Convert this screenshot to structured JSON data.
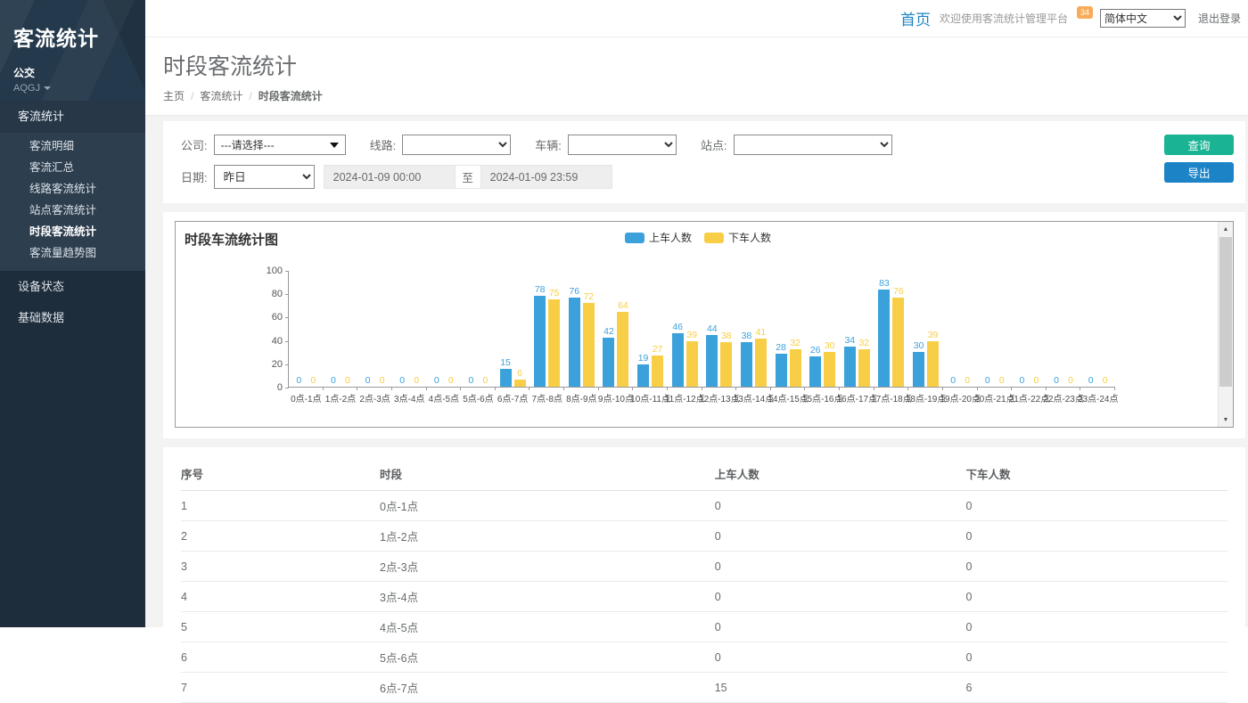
{
  "sidebar": {
    "app_title": "客流统计",
    "org": "公交",
    "user": "AQGJ",
    "menu": {
      "parent": "客流统计",
      "sub": [
        "客流明细",
        "客流汇总",
        "线路客流统计",
        "站点客流统计",
        "时段客流统计",
        "客流量趋势图"
      ],
      "active_sub_index": 4,
      "others": [
        "设备状态",
        "基础数据"
      ]
    }
  },
  "topbar": {
    "home": "首页",
    "welcome": "欢迎使用客流统计管理平台",
    "badge": "34",
    "language": "简体中文",
    "logout": "退出登录"
  },
  "heading": {
    "title": "时段客流统计",
    "breadcrumb": [
      "主页",
      "客流统计",
      "时段客流统计"
    ]
  },
  "filters": {
    "company_label": "公司:",
    "company_value": "---请选择---",
    "line_label": "线路:",
    "vehicle_label": "车辆:",
    "station_label": "站点:",
    "date_label": "日期:",
    "date_preset": "昨日",
    "date_start": "2024-01-09 00:00",
    "to_label": "至",
    "date_end": "2024-01-09 23:59",
    "query_button": "查询",
    "export_button": "导出"
  },
  "chart_data": {
    "type": "bar",
    "title": "时段车流统计图",
    "categories": [
      "0点-1点",
      "1点-2点",
      "2点-3点",
      "3点-4点",
      "4点-5点",
      "5点-6点",
      "6点-7点",
      "7点-8点",
      "8点-9点",
      "9点-10点",
      "10点-11点",
      "11点-12点",
      "12点-13点",
      "13点-14点",
      "14点-15点",
      "15点-16点",
      "16点-17点",
      "17点-18点",
      "18点-19点",
      "19点-20点",
      "20点-21点",
      "21点-22点",
      "22点-23点",
      "23点-24点"
    ],
    "series": [
      {
        "name": "上车人数",
        "color": "#3ba1db",
        "values": [
          0,
          0,
          0,
          0,
          0,
          0,
          15,
          78,
          76,
          42,
          19,
          46,
          44,
          38,
          28,
          26,
          34,
          83,
          30,
          0,
          0,
          0,
          0,
          0
        ]
      },
      {
        "name": "下车人数",
        "color": "#f8ce46",
        "values": [
          0,
          0,
          0,
          0,
          0,
          0,
          6,
          75,
          72,
          64,
          27,
          39,
          38,
          41,
          32,
          30,
          32,
          76,
          39,
          0,
          0,
          0,
          0,
          0
        ]
      }
    ],
    "ylim": [
      0,
      100
    ],
    "yticks": [
      0,
      20,
      40,
      60,
      80,
      100
    ],
    "legend_position": "top-center",
    "grid": false
  },
  "table": {
    "headers": [
      "序号",
      "时段",
      "上车人数",
      "下车人数"
    ],
    "rows": [
      [
        "1",
        "0点-1点",
        "0",
        "0"
      ],
      [
        "2",
        "1点-2点",
        "0",
        "0"
      ],
      [
        "3",
        "2点-3点",
        "0",
        "0"
      ],
      [
        "4",
        "3点-4点",
        "0",
        "0"
      ],
      [
        "5",
        "4点-5点",
        "0",
        "0"
      ],
      [
        "6",
        "5点-6点",
        "0",
        "0"
      ],
      [
        "7",
        "6点-7点",
        "15",
        "6"
      ]
    ]
  },
  "colors": {
    "accent_green": "#1ab394",
    "accent_blue": "#1c84c6",
    "badge_orange": "#f8ac59",
    "bar_blue": "#3ba1db",
    "bar_yellow": "#f8ce46"
  }
}
